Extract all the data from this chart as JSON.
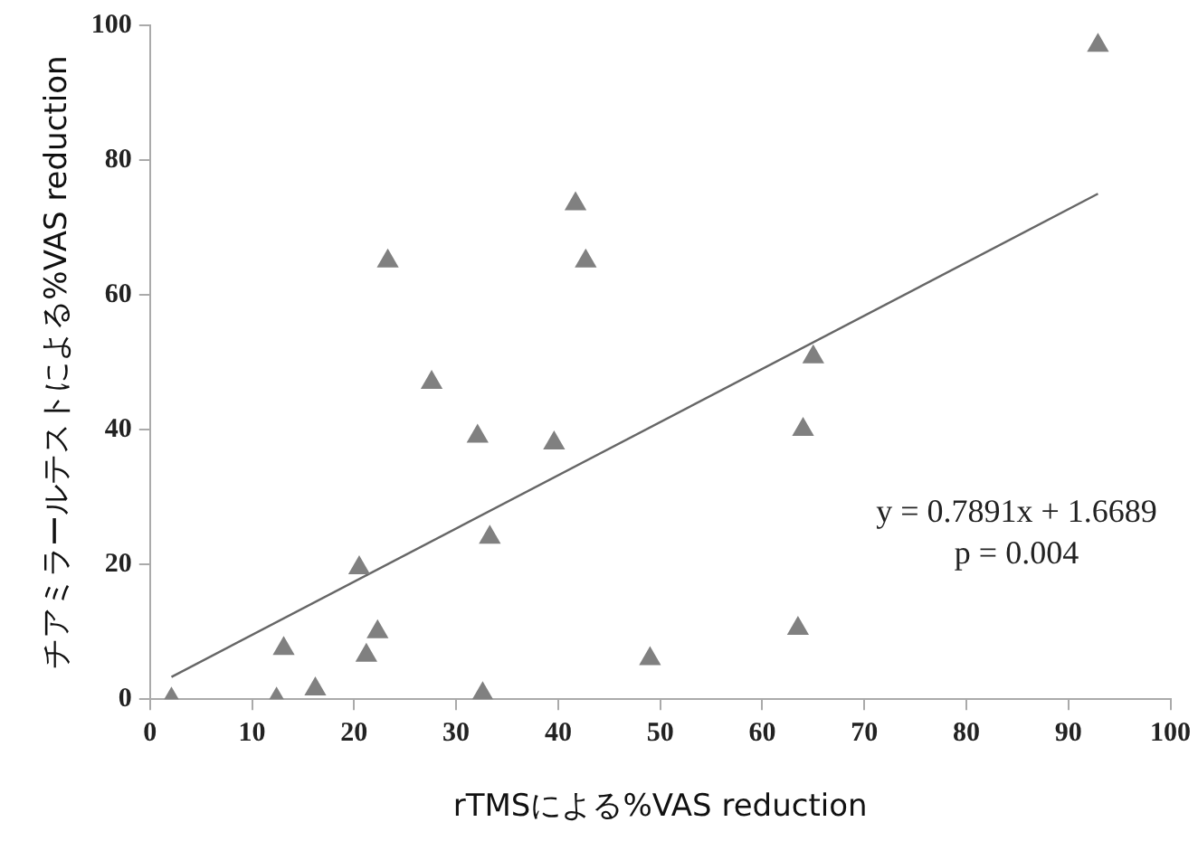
{
  "chart_data": {
    "type": "scatter",
    "xlabel": "rTMSによる%VAS reduction",
    "ylabel": "チアミラールテストによる%VAS reduction",
    "marker": "triangle",
    "grid": false,
    "legend": false,
    "xlim": [
      0,
      100
    ],
    "xticks": [
      0,
      10,
      20,
      30,
      40,
      50,
      60,
      70,
      80,
      90,
      100
    ],
    "ylim": [
      0,
      100
    ],
    "yticks": [
      0,
      20,
      40,
      60,
      80,
      100
    ],
    "annotations": [
      "y = 0.7891x + 1.6689",
      "p = 0.004"
    ],
    "series": [
      {
        "color": "#808080",
        "x": [
          2.1,
          12.4,
          13.1,
          16.2,
          20.5,
          21.2,
          22.3,
          23.3,
          27.6,
          32.1,
          32.6,
          33.3,
          39.6,
          41.7,
          42.7,
          49,
          63.5,
          64,
          65,
          92.9
        ],
        "values": [
          0,
          0,
          7.5,
          1.5,
          19.5,
          6.5,
          10,
          65,
          47,
          39,
          0.8,
          24,
          38,
          73.5,
          65,
          6,
          10.5,
          40,
          50.8,
          97
        ]
      },
      {
        "type": "line",
        "color": "#666666",
        "marker": "none",
        "x": [
          2.1,
          92.9
        ],
        "values": [
          3.3,
          75
        ]
      }
    ]
  }
}
